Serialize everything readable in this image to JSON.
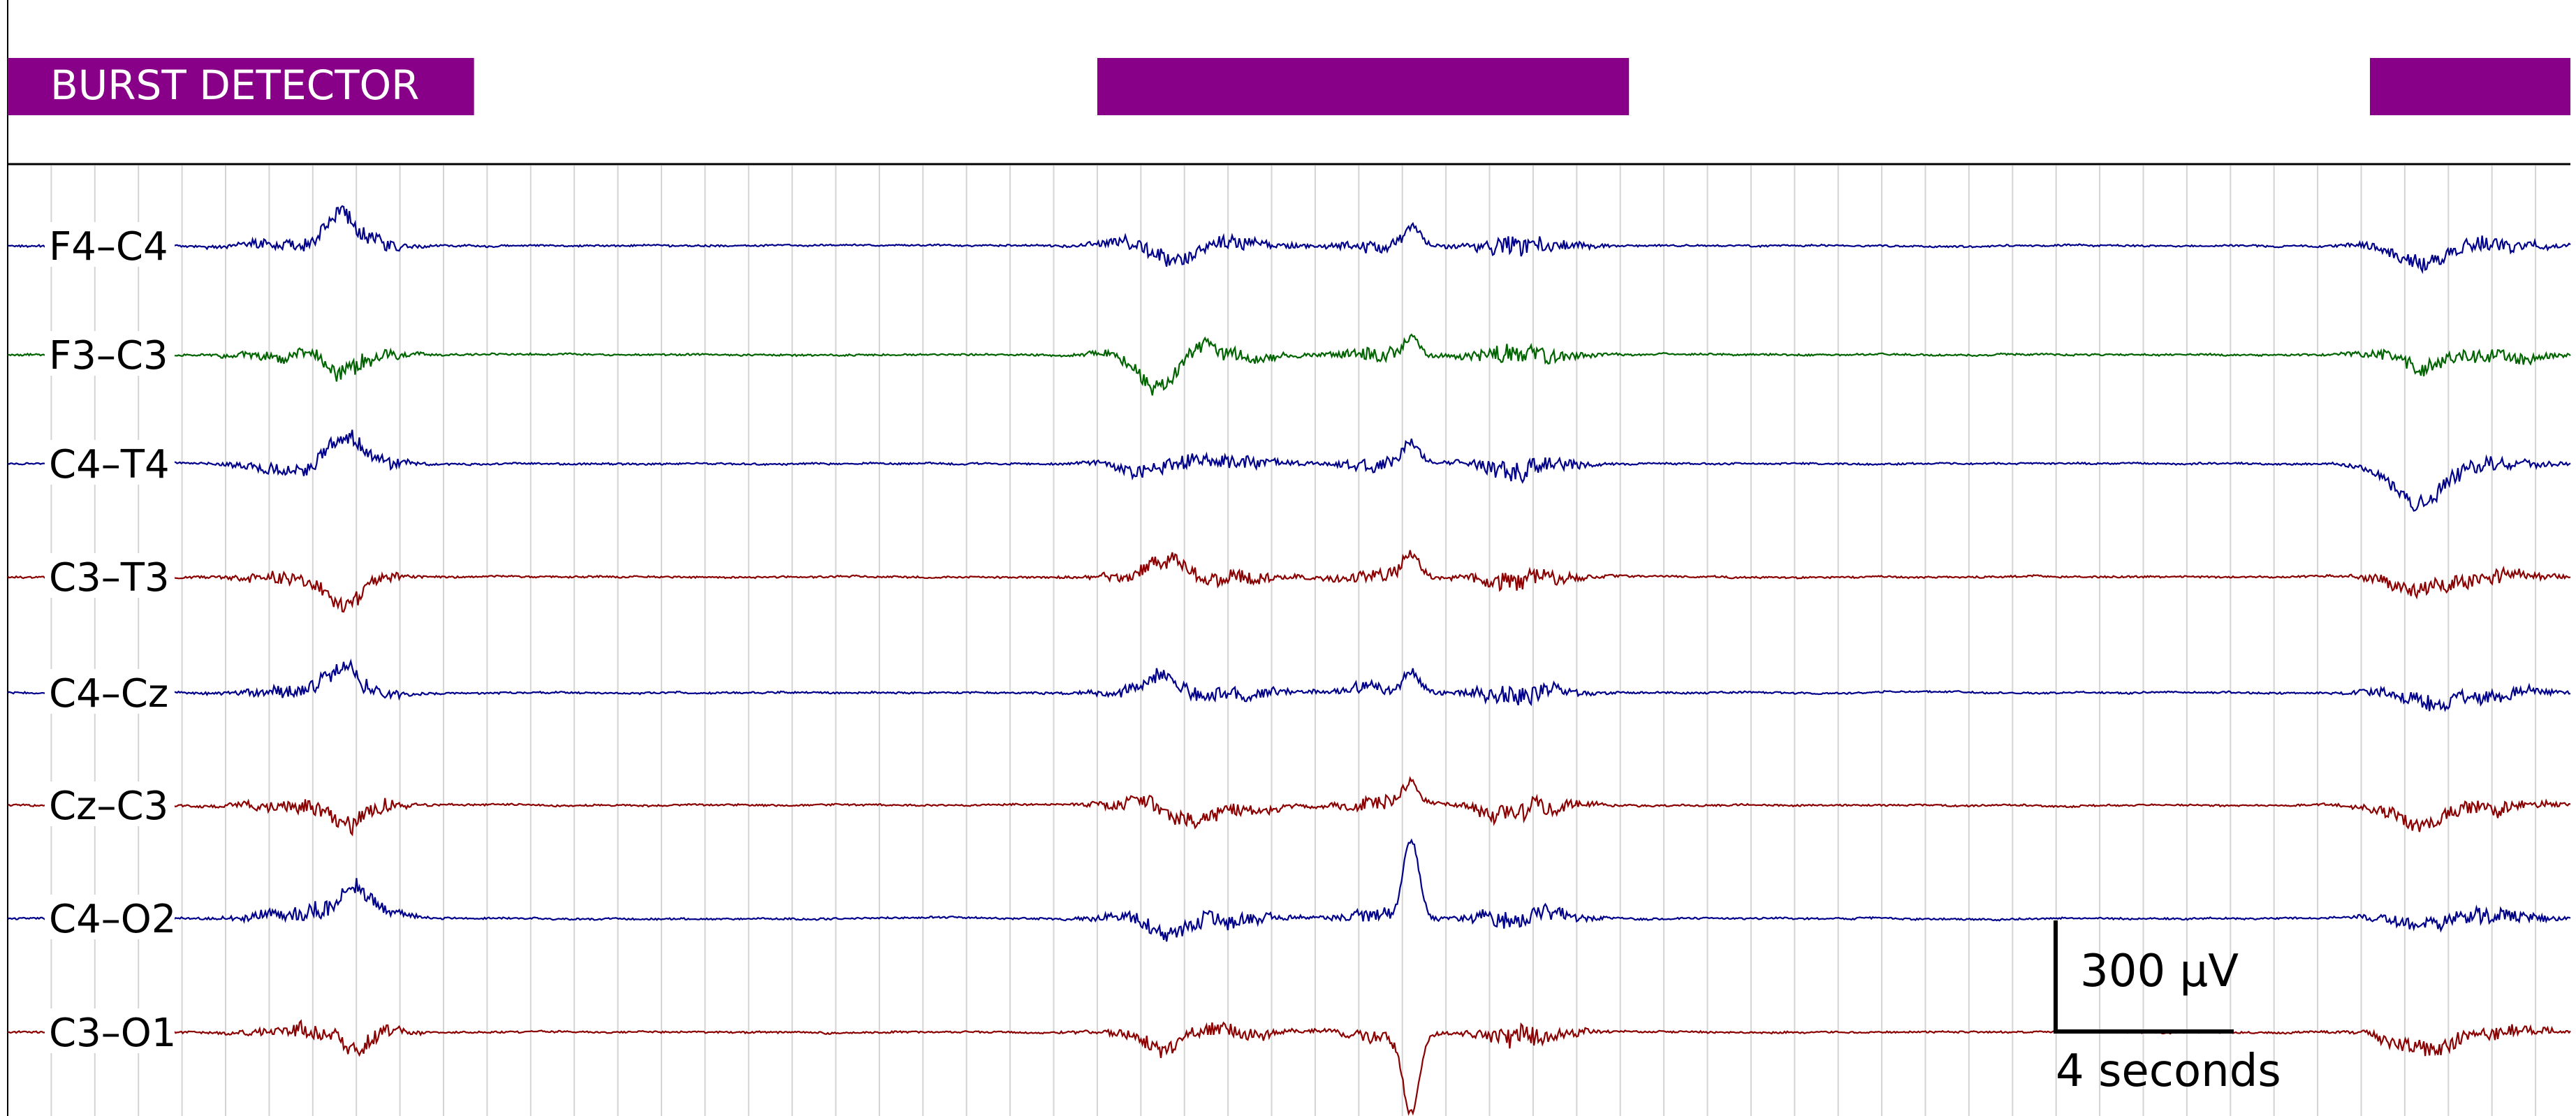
{
  "chart_data": {
    "type": "line",
    "title": "",
    "burst_detector": {
      "label": "BURST DETECTOR",
      "color": "#880088",
      "bursts_seconds": [
        [
          0,
          10.7
        ],
        [
          25,
          37.2
        ],
        [
          54.2,
          58.8
        ]
      ]
    },
    "time_range_seconds": [
      0,
      58.8
    ],
    "grid": "vertical lines every second",
    "series": [
      {
        "name": "F4–C4",
        "color": "#00008b"
      },
      {
        "name": "F3–C3",
        "color": "#006400"
      },
      {
        "name": "C4–T4",
        "color": "#00008b"
      },
      {
        "name": "C3–T3",
        "color": "#8b0000"
      },
      {
        "name": "C4–Cz",
        "color": "#00008b"
      },
      {
        "name": "Cz–C3",
        "color": "#8b0000"
      },
      {
        "name": "C4–O2",
        "color": "#00008b"
      },
      {
        "name": "C3–O1",
        "color": "#8b0000"
      }
    ],
    "scale_bar": {
      "amplitude_label": "300 μV",
      "time_label": "4 seconds",
      "time_seconds": 4,
      "amplitude_uV": 300
    }
  }
}
